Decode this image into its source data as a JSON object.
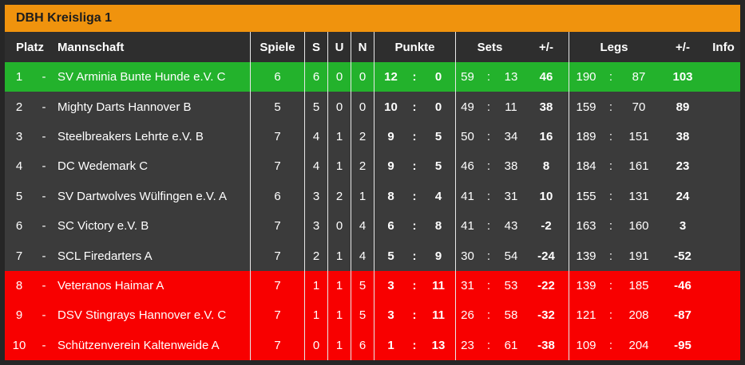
{
  "title": "DBH Kreisliga 1",
  "colors": {
    "accent_orange": "#f0930d",
    "promotion_green": "#23b22c",
    "relegation_red": "#f80000",
    "row_dark": "#3b3b3b",
    "header_dark": "#2e2e2e",
    "frame_dark": "#262626"
  },
  "table": {
    "colon_symbol": ":",
    "dash_symbol": "-",
    "headers": {
      "platz": "Platz",
      "mannschaft": "Mannschaft",
      "spiele": "Spiele",
      "s": "S",
      "u": "U",
      "n": "N",
      "punkte": "Punkte",
      "sets": "Sets",
      "sets_diff": "+/-",
      "legs": "Legs",
      "legs_diff": "+/-",
      "info": "Info"
    },
    "rows": [
      {
        "rank": "1",
        "team": "SV Arminia Bunte Hunde e.V. C",
        "spiele": "6",
        "s": "6",
        "u": "0",
        "n": "0",
        "punkte_for": "12",
        "punkte_against": "0",
        "sets_for": "59",
        "sets_against": "13",
        "sets_diff": "46",
        "legs_for": "190",
        "legs_against": "87",
        "legs_diff": "103",
        "status": "promotion"
      },
      {
        "rank": "2",
        "team": "Mighty Darts Hannover B",
        "spiele": "5",
        "s": "5",
        "u": "0",
        "n": "0",
        "punkte_for": "10",
        "punkte_against": "0",
        "sets_for": "49",
        "sets_against": "11",
        "sets_diff": "38",
        "legs_for": "159",
        "legs_against": "70",
        "legs_diff": "89",
        "status": "normal"
      },
      {
        "rank": "3",
        "team": "Steelbreakers Lehrte e.V. B",
        "spiele": "7",
        "s": "4",
        "u": "1",
        "n": "2",
        "punkte_for": "9",
        "punkte_against": "5",
        "sets_for": "50",
        "sets_against": "34",
        "sets_diff": "16",
        "legs_for": "189",
        "legs_against": "151",
        "legs_diff": "38",
        "status": "normal"
      },
      {
        "rank": "4",
        "team": "DC Wedemark C",
        "spiele": "7",
        "s": "4",
        "u": "1",
        "n": "2",
        "punkte_for": "9",
        "punkte_against": "5",
        "sets_for": "46",
        "sets_against": "38",
        "sets_diff": "8",
        "legs_for": "184",
        "legs_against": "161",
        "legs_diff": "23",
        "status": "normal"
      },
      {
        "rank": "5",
        "team": "SV Dartwolves Wülfingen e.V. A",
        "spiele": "6",
        "s": "3",
        "u": "2",
        "n": "1",
        "punkte_for": "8",
        "punkte_against": "4",
        "sets_for": "41",
        "sets_against": "31",
        "sets_diff": "10",
        "legs_for": "155",
        "legs_against": "131",
        "legs_diff": "24",
        "status": "normal"
      },
      {
        "rank": "6",
        "team": "SC Victory e.V. B",
        "spiele": "7",
        "s": "3",
        "u": "0",
        "n": "4",
        "punkte_for": "6",
        "punkte_against": "8",
        "sets_for": "41",
        "sets_against": "43",
        "sets_diff": "-2",
        "legs_for": "163",
        "legs_against": "160",
        "legs_diff": "3",
        "status": "normal"
      },
      {
        "rank": "7",
        "team": "SCL Firedarters A",
        "spiele": "7",
        "s": "2",
        "u": "1",
        "n": "4",
        "punkte_for": "5",
        "punkte_against": "9",
        "sets_for": "30",
        "sets_against": "54",
        "sets_diff": "-24",
        "legs_for": "139",
        "legs_against": "191",
        "legs_diff": "-52",
        "status": "normal"
      },
      {
        "rank": "8",
        "team": "Veteranos Haimar A",
        "spiele": "7",
        "s": "1",
        "u": "1",
        "n": "5",
        "punkte_for": "3",
        "punkte_against": "11",
        "sets_for": "31",
        "sets_against": "53",
        "sets_diff": "-22",
        "legs_for": "139",
        "legs_against": "185",
        "legs_diff": "-46",
        "status": "relegation"
      },
      {
        "rank": "9",
        "team": "DSV Stingrays Hannover e.V. C",
        "spiele": "7",
        "s": "1",
        "u": "1",
        "n": "5",
        "punkte_for": "3",
        "punkte_against": "11",
        "sets_for": "26",
        "sets_against": "58",
        "sets_diff": "-32",
        "legs_for": "121",
        "legs_against": "208",
        "legs_diff": "-87",
        "status": "relegation"
      },
      {
        "rank": "10",
        "team": "Schützenverein Kaltenweide A",
        "spiele": "7",
        "s": "0",
        "u": "1",
        "n": "6",
        "punkte_for": "1",
        "punkte_against": "13",
        "sets_for": "23",
        "sets_against": "61",
        "sets_diff": "-38",
        "legs_for": "109",
        "legs_against": "204",
        "legs_diff": "-95",
        "status": "relegation"
      }
    ]
  }
}
